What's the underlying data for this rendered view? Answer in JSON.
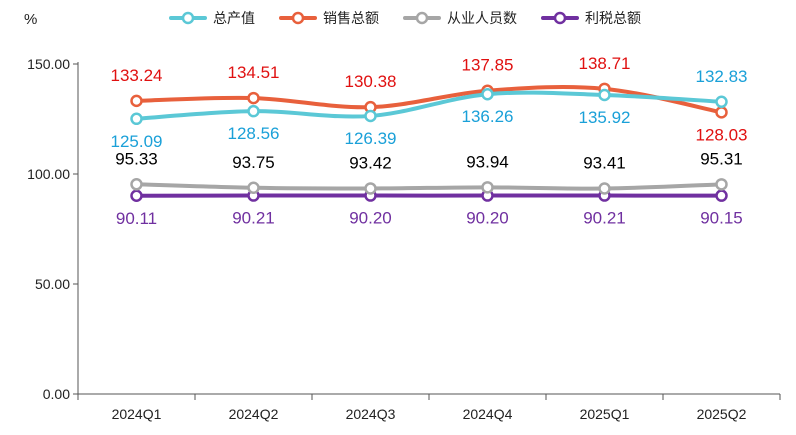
{
  "colors": {
    "axis": "#555555",
    "tick_text": "#222222"
  },
  "chart_data": {
    "type": "line",
    "title": "",
    "ylabel": "%",
    "xlabel": "",
    "categories": [
      "2024Q1",
      "2024Q2",
      "2024Q3",
      "2024Q4",
      "2025Q1",
      "2025Q2"
    ],
    "ylim": [
      0,
      150
    ],
    "yticks": [
      "0.00",
      "50.00",
      "100.00",
      "150.00"
    ],
    "grid": false,
    "legend_position": "top",
    "series": [
      {
        "name": "总产值",
        "values": [
          125.09,
          128.56,
          126.39,
          136.26,
          135.92,
          132.83
        ],
        "labels": [
          "125.09",
          "128.56",
          "126.39",
          "136.26",
          "135.92",
          "132.83"
        ],
        "color": "#5bc8d6",
        "label_color": "#1aa0d8",
        "label_side": [
          "below",
          "below",
          "below",
          "below",
          "below",
          "above"
        ]
      },
      {
        "name": "销售总额",
        "values": [
          133.24,
          134.51,
          130.38,
          137.85,
          138.71,
          128.03
        ],
        "labels": [
          "133.24",
          "134.51",
          "130.38",
          "137.85",
          "138.71",
          "128.03"
        ],
        "color": "#e8603c",
        "label_color": "#e01010",
        "label_side": [
          "above",
          "above",
          "above",
          "above",
          "above",
          "below"
        ]
      },
      {
        "name": "从业人员数",
        "values": [
          95.33,
          93.75,
          93.42,
          93.94,
          93.41,
          95.31
        ],
        "labels": [
          "95.33",
          "93.75",
          "93.42",
          "93.94",
          "93.41",
          "95.31"
        ],
        "color": "#a6a6a6",
        "label_color": "#000000",
        "label_side": [
          "above",
          "above",
          "above",
          "above",
          "above",
          "above"
        ]
      },
      {
        "name": "利税总额",
        "values": [
          90.11,
          90.21,
          90.2,
          90.2,
          90.21,
          90.15
        ],
        "labels": [
          "90.11",
          "90.21",
          "90.20",
          "90.20",
          "90.21",
          "90.15"
        ],
        "color": "#7030a0",
        "label_color": "#7030a0",
        "label_side": [
          "below",
          "below",
          "below",
          "below",
          "below",
          "below"
        ]
      }
    ]
  }
}
